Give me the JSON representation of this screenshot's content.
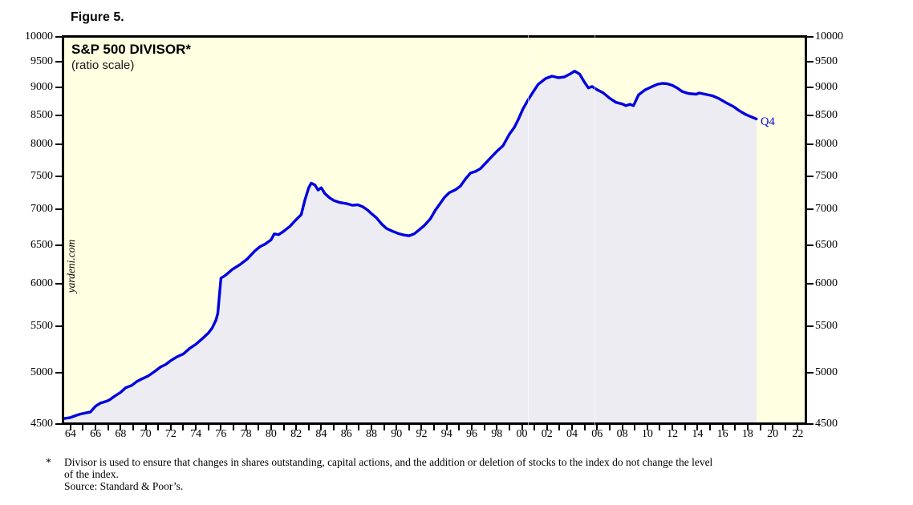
{
  "figure_label": "Figure 5.",
  "watermark": "yardeni.com",
  "footnote": {
    "marker": "*",
    "line1": "Divisor is used to ensure that changes in shares outstanding, capital actions, and the addition or deletion of stocks to the index do not change the level",
    "line2": "of the index.",
    "source": "Source: Standard & Poor’s."
  },
  "chart_data": {
    "type": "area",
    "title": "S&P 500 DIVISOR*",
    "subtitle": "(ratio scale)",
    "series_name": "S&P 500 Divisor",
    "end_label": "Q4",
    "y_scale": "log",
    "grid": false,
    "legend": "none",
    "x_domain": [
      1963.5,
      2022.55
    ],
    "y_domain": [
      4500,
      10000
    ],
    "y_ticks": [
      4500,
      5000,
      5500,
      6000,
      6500,
      7000,
      7500,
      8000,
      8500,
      9000,
      9500,
      10000
    ],
    "x_tick_labels": [
      "64",
      "66",
      "68",
      "70",
      "72",
      "74",
      "76",
      "78",
      "80",
      "82",
      "84",
      "86",
      "88",
      "90",
      "92",
      "94",
      "96",
      "98",
      "00",
      "02",
      "04",
      "06",
      "08",
      "10",
      "12",
      "14",
      "16",
      "18",
      "20",
      "22"
    ],
    "x_minor_tick_step": 1,
    "line_color": "#0000e0",
    "fill_color": "#ececf2",
    "bg_color": "#ffffe1",
    "x": [
      1963.5,
      1964.0,
      1964.4,
      1964.8,
      1965.2,
      1965.6,
      1966.0,
      1966.4,
      1966.8,
      1967.1,
      1967.5,
      1968.0,
      1968.4,
      1968.9,
      1969.3,
      1969.7,
      1970.2,
      1970.7,
      1971.2,
      1971.6,
      1972.0,
      1972.5,
      1973.0,
      1973.5,
      1974.0,
      1974.5,
      1975.0,
      1975.3,
      1975.6,
      1975.75,
      1976.0,
      1976.4,
      1976.9,
      1977.5,
      1978.1,
      1978.7,
      1979.1,
      1979.5,
      1980.0,
      1980.25,
      1980.6,
      1981.0,
      1981.5,
      1982.0,
      1982.4,
      1982.7,
      1983.0,
      1983.2,
      1983.5,
      1983.75,
      1984.0,
      1984.3,
      1984.7,
      1985.0,
      1985.5,
      1986.0,
      1986.5,
      1986.9,
      1987.3,
      1987.7,
      1988.0,
      1988.4,
      1988.8,
      1989.2,
      1989.7,
      1990.1,
      1990.5,
      1991.0,
      1991.4,
      1991.8,
      1992.2,
      1992.7,
      1993.1,
      1993.5,
      1993.8,
      1994.2,
      1994.7,
      1995.1,
      1995.5,
      1995.9,
      1996.3,
      1996.7,
      1997.1,
      1997.5,
      1998.0,
      1998.5,
      1999.0,
      1999.4,
      1999.7,
      2000.1,
      2000.5,
      2000.9,
      2001.3,
      2001.9,
      2002.4,
      2002.9,
      2003.4,
      2003.9,
      2004.2,
      2004.6,
      2005.0,
      2005.3,
      2005.6,
      2006.0,
      2006.5,
      2007.0,
      2007.5,
      2008.0,
      2008.3,
      2008.6,
      2008.9,
      2009.3,
      2009.8,
      2010.3,
      2010.8,
      2011.2,
      2011.6,
      2012.0,
      2012.4,
      2012.8,
      2013.3,
      2013.9,
      2014.15,
      2014.6,
      2015.2,
      2015.7,
      2016.3,
      2016.9,
      2017.3,
      2017.8,
      2018.2,
      2018.7
    ],
    "values": [
      4548,
      4557,
      4575,
      4590,
      4600,
      4610,
      4665,
      4695,
      4710,
      4725,
      4760,
      4800,
      4845,
      4870,
      4910,
      4935,
      4965,
      5010,
      5060,
      5085,
      5125,
      5165,
      5195,
      5255,
      5300,
      5360,
      5425,
      5480,
      5570,
      5650,
      6075,
      6115,
      6185,
      6245,
      6320,
      6425,
      6480,
      6515,
      6575,
      6655,
      6645,
      6690,
      6760,
      6855,
      6925,
      7140,
      7320,
      7390,
      7360,
      7285,
      7320,
      7230,
      7165,
      7130,
      7100,
      7085,
      7060,
      7068,
      7040,
      6990,
      6940,
      6880,
      6795,
      6730,
      6690,
      6663,
      6643,
      6630,
      6655,
      6710,
      6768,
      6865,
      6990,
      7090,
      7170,
      7245,
      7290,
      7345,
      7455,
      7545,
      7570,
      7615,
      7700,
      7785,
      7890,
      7985,
      8175,
      8290,
      8420,
      8620,
      8775,
      8920,
      9060,
      9170,
      9215,
      9185,
      9200,
      9265,
      9310,
      9255,
      9095,
      8995,
      9020,
      8960,
      8900,
      8805,
      8730,
      8700,
      8670,
      8695,
      8670,
      8865,
      8955,
      9010,
      9060,
      9078,
      9070,
      9040,
      8990,
      8925,
      8890,
      8878,
      8900,
      8878,
      8848,
      8800,
      8720,
      8650,
      8585,
      8520,
      8480,
      8435
    ]
  }
}
